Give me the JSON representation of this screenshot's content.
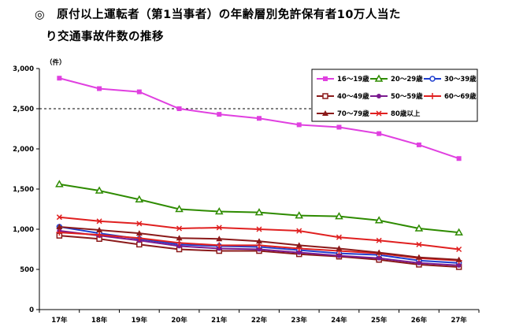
{
  "header": {
    "title_line1": "◎　原付以上運転者（第1当事者）の年齢層別免許保有者10万人当た",
    "title_line2": "り交通事故件数の推移"
  },
  "chart_data": {
    "type": "line",
    "unit_label": "（件）",
    "categories": [
      "17年",
      "18年",
      "19年",
      "20年",
      "21年",
      "22年",
      "23年",
      "24年",
      "25年",
      "26年",
      "27年"
    ],
    "y_ticks": [
      "0",
      "500",
      "1,000",
      "1,500",
      "2,000",
      "2,500",
      "3,000"
    ],
    "ylim": [
      0,
      3000
    ],
    "reference_line": 2500,
    "legend_position": "top-right",
    "series": [
      {
        "name": "16～19歳",
        "color": "#E040E0",
        "marker": "square-filled",
        "values": [
          2880,
          2750,
          2710,
          2500,
          2430,
          2380,
          2300,
          2270,
          2190,
          2050,
          1880
        ]
      },
      {
        "name": "20～29歳",
        "color": "#2E8B00",
        "marker": "triangle-open",
        "values": [
          1560,
          1480,
          1370,
          1250,
          1220,
          1210,
          1170,
          1160,
          1110,
          1010,
          960
        ]
      },
      {
        "name": "30～39歳",
        "color": "#1F3FCF",
        "marker": "circle-open",
        "values": [
          1030,
          950,
          880,
          810,
          790,
          780,
          740,
          700,
          680,
          610,
          580
        ]
      },
      {
        "name": "40～49歳",
        "color": "#8B1A1A",
        "marker": "square-open",
        "values": [
          920,
          880,
          810,
          750,
          730,
          730,
          690,
          660,
          620,
          560,
          530
        ]
      },
      {
        "name": "50～59歳",
        "color": "#7A1A8F",
        "marker": "circle-filled",
        "values": [
          980,
          920,
          860,
          790,
          760,
          750,
          710,
          670,
          640,
          580,
          550
        ]
      },
      {
        "name": "60～69歳",
        "color": "#E02020",
        "marker": "plus",
        "values": [
          960,
          930,
          890,
          830,
          800,
          800,
          760,
          730,
          700,
          640,
          610
        ]
      },
      {
        "name": "70～79歳",
        "color": "#8B1A1A",
        "marker": "triangle-filled",
        "values": [
          1030,
          990,
          950,
          890,
          880,
          850,
          800,
          760,
          710,
          650,
          620
        ]
      },
      {
        "name": "80歳以上",
        "color": "#E02020",
        "marker": "x",
        "values": [
          1150,
          1100,
          1070,
          1010,
          1020,
          1000,
          980,
          900,
          860,
          810,
          750
        ]
      }
    ]
  }
}
